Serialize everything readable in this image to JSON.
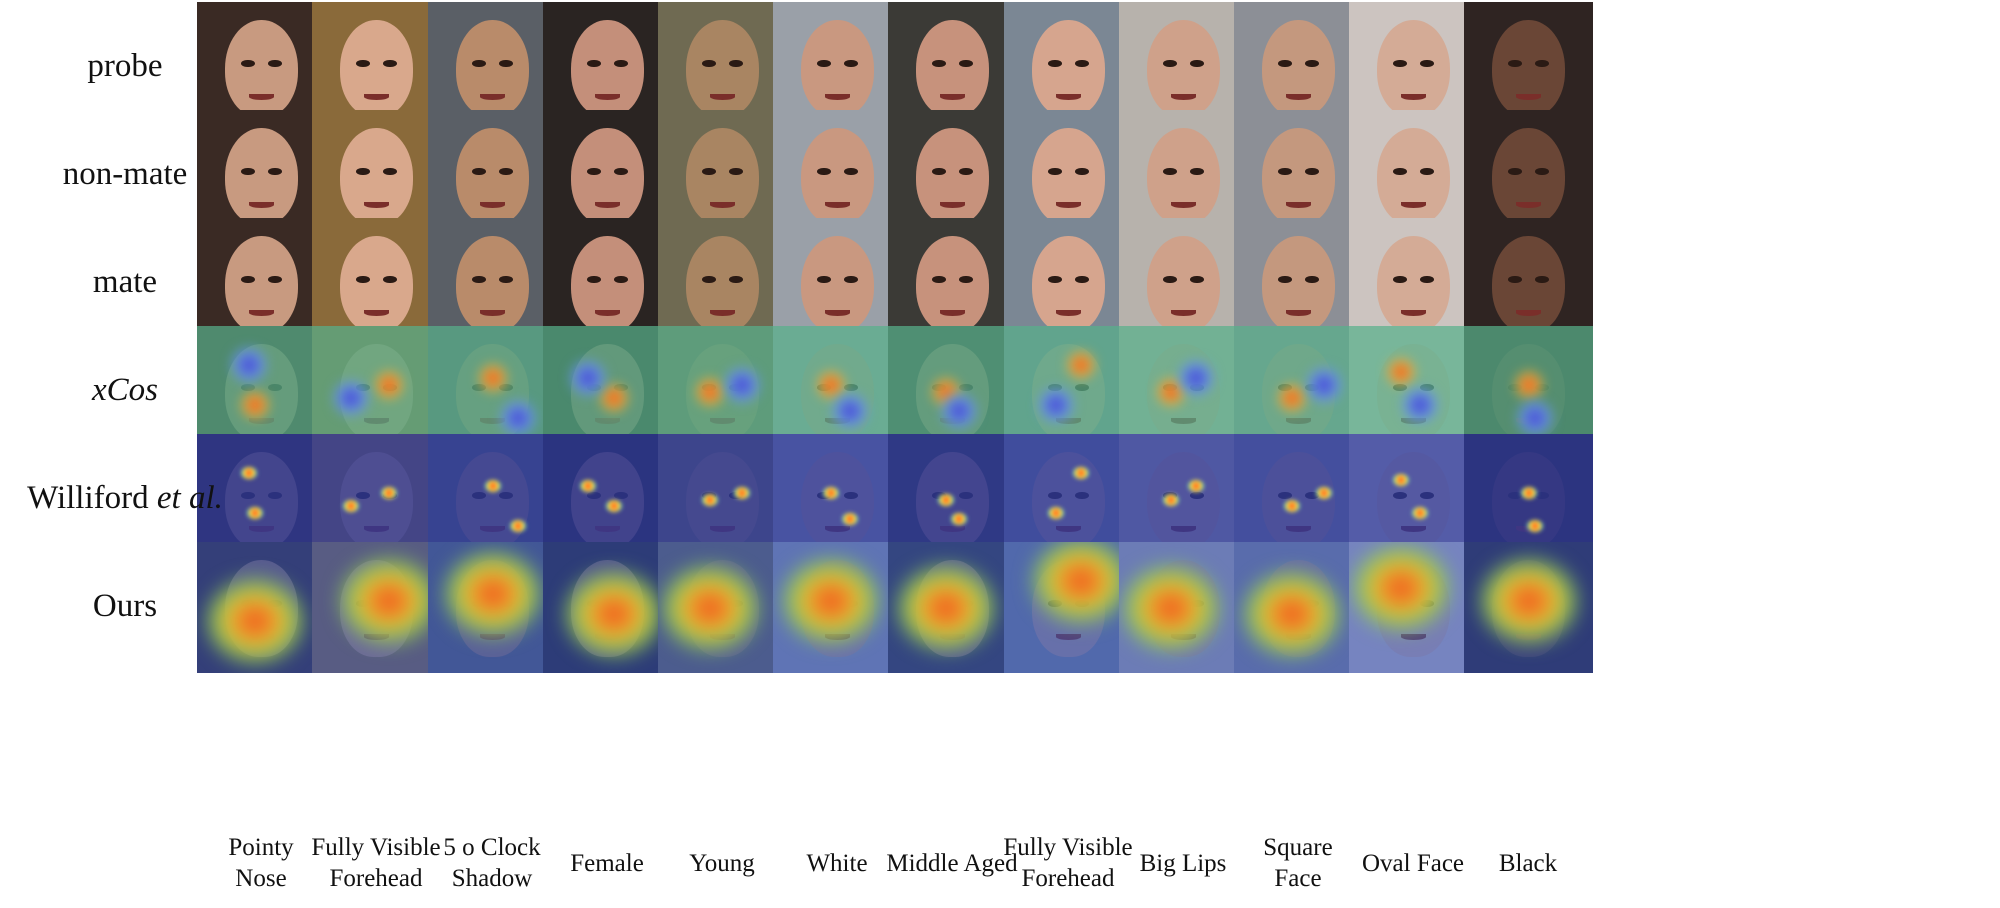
{
  "rows": [
    {
      "id": "probe",
      "label": "probe",
      "label_suffix": "",
      "italic": false,
      "kind": "photo"
    },
    {
      "id": "non-mate",
      "label": "non-mate",
      "label_suffix": "",
      "italic": false,
      "kind": "photo"
    },
    {
      "id": "mate",
      "label": "mate",
      "label_suffix": "",
      "italic": false,
      "kind": "photo"
    },
    {
      "id": "xcos",
      "label": "xCos",
      "label_suffix": "",
      "italic": true,
      "kind": "xcos"
    },
    {
      "id": "williford",
      "label": "Williford ",
      "label_suffix": "et al.",
      "italic": false,
      "kind": "williford"
    },
    {
      "id": "ours",
      "label": "Ours",
      "label_suffix": "",
      "italic": false,
      "kind": "ours"
    }
  ],
  "columns": [
    {
      "line1": "Pointy",
      "line2": "Nose"
    },
    {
      "line1": "Fully Visible",
      "line2": "Forehead"
    },
    {
      "line1": "5 o Clock",
      "line2": "Shadow"
    },
    {
      "line1": "Female",
      "line2": ""
    },
    {
      "line1": "Young",
      "line2": ""
    },
    {
      "line1": "White",
      "line2": ""
    },
    {
      "line1": "Middle Aged",
      "line2": ""
    },
    {
      "line1": "Fully Visible",
      "line2": "Forehead"
    },
    {
      "line1": "Big Lips",
      "line2": ""
    },
    {
      "line1": "Square",
      "line2": "Face"
    },
    {
      "line1": "Oval Face",
      "line2": ""
    },
    {
      "line1": "Black",
      "line2": ""
    }
  ],
  "colors": {
    "skin": [
      "#c89a80",
      "#d9a88c",
      "#b98b6a",
      "#c48f7a",
      "#a98562",
      "#c99880",
      "#c7927c",
      "#d6a58e",
      "#cfa18a",
      "#c4987e",
      "#d4ab96",
      "#6a4636"
    ],
    "background": [
      "#3a2a24",
      "#8a6a3a",
      "#5a5f66",
      "#2a2422",
      "#6f6a52",
      "#9aa0a8",
      "#3b3a36",
      "#7b8794",
      "#b7b2ac",
      "#8c8f96",
      "#ccc4c0",
      "#2f2422"
    ],
    "xcos_base": "#58b08a",
    "williford_base": "#2c3aa0",
    "ours_base": "#3050c0"
  }
}
